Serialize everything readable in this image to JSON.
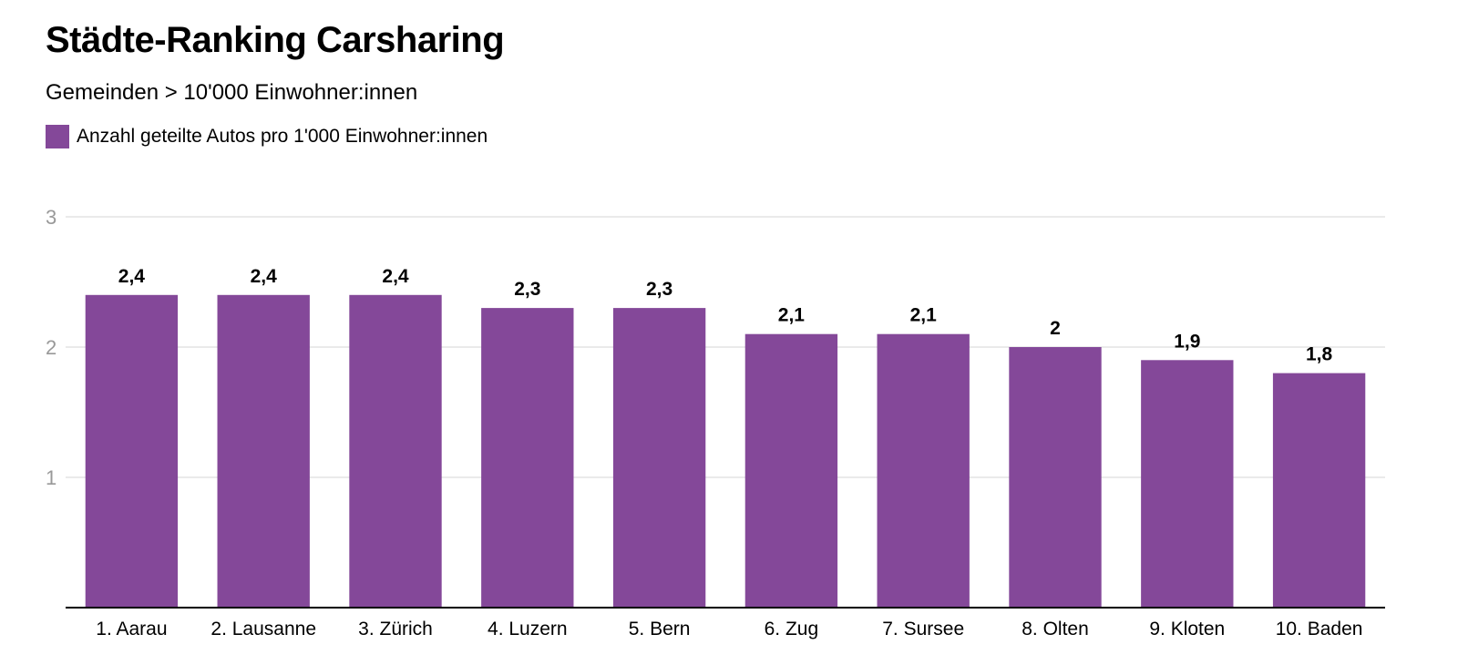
{
  "chart_data": {
    "type": "bar",
    "title": "Städte-Ranking Carsharing",
    "subtitle": "Gemeinden > 10'000 Einwohner:innen",
    "xlabel": "",
    "ylabel": "",
    "ylim": [
      0,
      3
    ],
    "yticks": [
      "1",
      "2",
      "3"
    ],
    "ytick_values": [
      1,
      2,
      3
    ],
    "grid": true,
    "legend_position": "top-left",
    "categories": [
      "1. Aarau",
      "2. Lausanne",
      "3. Zürich",
      "4. Luzern",
      "5. Bern",
      "6. Zug",
      "7. Sursee",
      "8. Olten",
      "9. Kloten",
      "10. Baden"
    ],
    "series": [
      {
        "name": "Anzahl geteilte Autos pro 1'000 Einwohner:innen",
        "color": "#844899",
        "values": [
          2.4,
          2.4,
          2.4,
          2.3,
          2.3,
          2.1,
          2.1,
          2,
          1.9,
          1.8
        ],
        "data_labels": [
          "2,4",
          "2,4",
          "2,4",
          "2,3",
          "2,3",
          "2,1",
          "2,1",
          "2",
          "1,9",
          "1,8"
        ]
      }
    ]
  }
}
